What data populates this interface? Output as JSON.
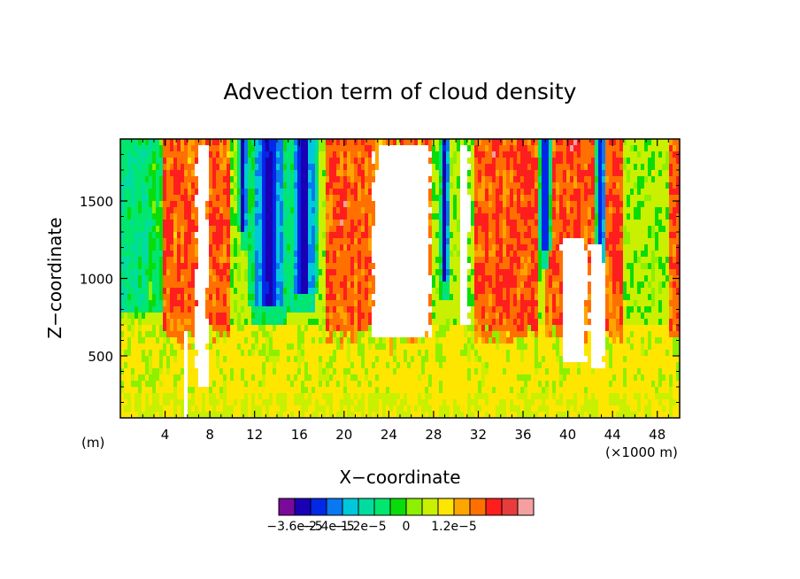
{
  "chart_data": {
    "type": "heatmap",
    "title": "Advection term of cloud density",
    "xlabel": "X−coordinate",
    "ylabel": "Z−coordinate",
    "x_unit_left": "(m)",
    "x_unit_right": "(×1000 m)",
    "xlim": [
      0,
      50
    ],
    "ylim": [
      100,
      1900
    ],
    "x_ticks": [
      "4",
      "8",
      "12",
      "16",
      "20",
      "24",
      "28",
      "32",
      "36",
      "40",
      "44",
      "48"
    ],
    "y_ticks": [
      "500",
      "1000",
      "1500"
    ],
    "colorbar": {
      "colors": [
        "#7a0a9a",
        "#1a00b4",
        "#0028e6",
        "#0a78f0",
        "#00c8dc",
        "#00dca0",
        "#00e66e",
        "#0adc0a",
        "#8cf000",
        "#c8f000",
        "#ffe600",
        "#ffa500",
        "#ff7000",
        "#ff1e1e",
        "#e83c3c",
        "#f5a0a0"
      ],
      "labels": [
        "−3.6e−5",
        "−2.4e−5",
        "−1.2e−5",
        "0",
        "1.2e−5"
      ]
    }
  }
}
